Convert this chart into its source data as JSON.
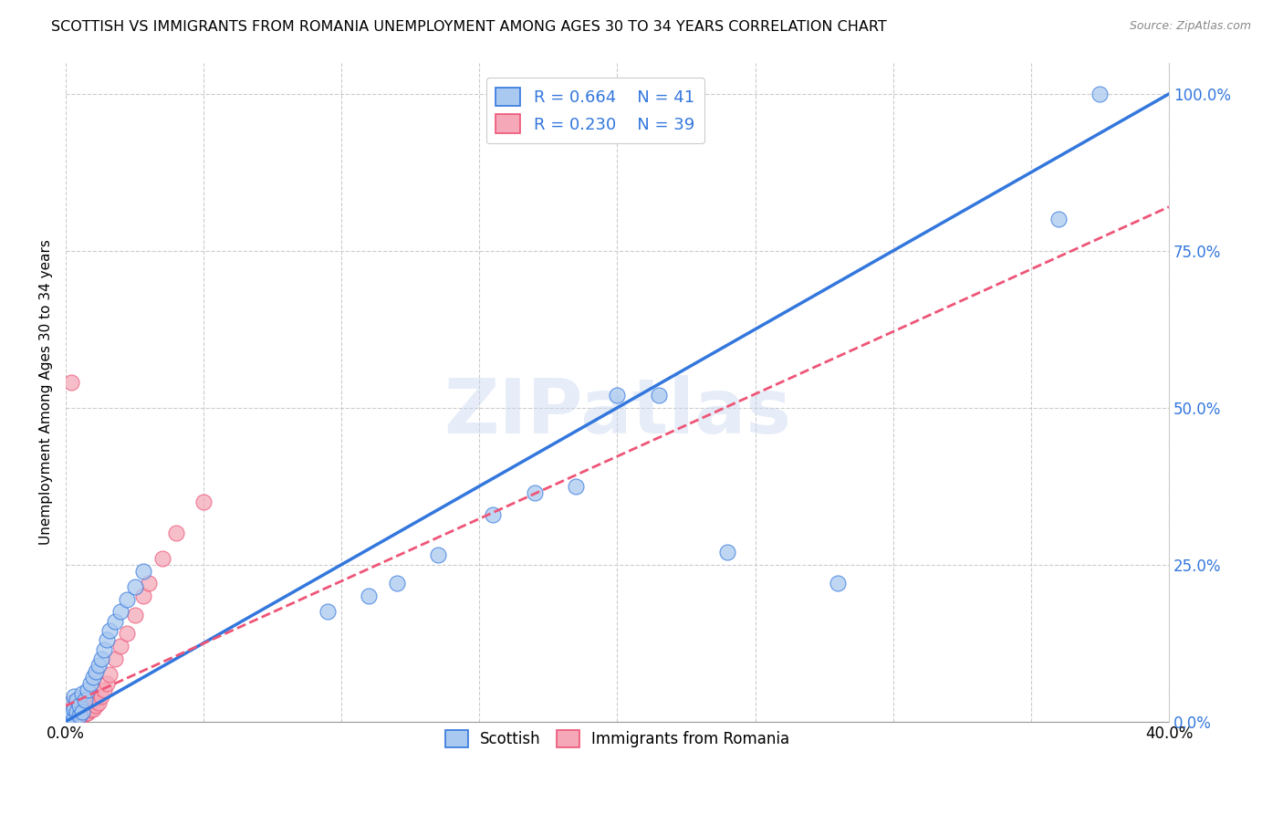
{
  "title": "SCOTTISH VS IMMIGRANTS FROM ROMANIA UNEMPLOYMENT AMONG AGES 30 TO 34 YEARS CORRELATION CHART",
  "source": "Source: ZipAtlas.com",
  "ylabel": "Unemployment Among Ages 30 to 34 years",
  "xlim": [
    0,
    0.4
  ],
  "ylim": [
    0,
    1.05
  ],
  "xtick_positions": [
    0.0,
    0.05,
    0.1,
    0.15,
    0.2,
    0.25,
    0.3,
    0.35,
    0.4
  ],
  "xtick_labels": [
    "0.0%",
    "",
    "",
    "",
    "",
    "",
    "",
    "",
    "40.0%"
  ],
  "ytick_positions": [
    0.0,
    0.25,
    0.5,
    0.75,
    1.0
  ],
  "ytick_labels": [
    "0.0%",
    "25.0%",
    "50.0%",
    "75.0%",
    "100.0%"
  ],
  "watermark": "ZIPatlas",
  "scottish_color": "#aac9f0",
  "romania_color": "#f4a8b8",
  "trend_blue": "#3377dd",
  "trend_pink": "#ee5577",
  "scottish_x": [
    0.001,
    0.001,
    0.002,
    0.002,
    0.003,
    0.003,
    0.003,
    0.004,
    0.004,
    0.005,
    0.005,
    0.006,
    0.006,
    0.007,
    0.008,
    0.009,
    0.01,
    0.011,
    0.012,
    0.013,
    0.014,
    0.015,
    0.016,
    0.018,
    0.02,
    0.022,
    0.025,
    0.028,
    0.095,
    0.11,
    0.12,
    0.135,
    0.155,
    0.17,
    0.185,
    0.2,
    0.215,
    0.24,
    0.28,
    0.36,
    0.375
  ],
  "scottish_y": [
    0.005,
    0.01,
    0.015,
    0.03,
    0.005,
    0.02,
    0.04,
    0.015,
    0.035,
    0.01,
    0.025,
    0.015,
    0.045,
    0.035,
    0.05,
    0.06,
    0.07,
    0.08,
    0.09,
    0.1,
    0.115,
    0.13,
    0.145,
    0.16,
    0.175,
    0.195,
    0.215,
    0.24,
    0.175,
    0.2,
    0.22,
    0.265,
    0.33,
    0.365,
    0.375,
    0.52,
    0.52,
    0.27,
    0.22,
    0.8,
    1.0
  ],
  "romania_x": [
    0.001,
    0.001,
    0.001,
    0.002,
    0.002,
    0.002,
    0.003,
    0.003,
    0.003,
    0.004,
    0.004,
    0.005,
    0.005,
    0.005,
    0.006,
    0.006,
    0.007,
    0.007,
    0.008,
    0.008,
    0.009,
    0.01,
    0.01,
    0.011,
    0.012,
    0.013,
    0.014,
    0.015,
    0.016,
    0.018,
    0.02,
    0.022,
    0.025,
    0.028,
    0.03,
    0.035,
    0.04,
    0.05,
    0.002
  ],
  "romania_y": [
    0.005,
    0.015,
    0.025,
    0.01,
    0.02,
    0.03,
    0.005,
    0.015,
    0.025,
    0.008,
    0.018,
    0.005,
    0.015,
    0.028,
    0.01,
    0.02,
    0.012,
    0.022,
    0.014,
    0.025,
    0.018,
    0.02,
    0.035,
    0.025,
    0.03,
    0.04,
    0.05,
    0.06,
    0.075,
    0.1,
    0.12,
    0.14,
    0.17,
    0.2,
    0.22,
    0.26,
    0.3,
    0.35,
    0.54
  ],
  "blue_line_x": [
    0.0,
    0.4
  ],
  "blue_line_y": [
    0.0,
    1.0
  ],
  "pink_line_x": [
    0.0,
    0.4
  ],
  "pink_line_y": [
    0.025,
    0.82
  ]
}
